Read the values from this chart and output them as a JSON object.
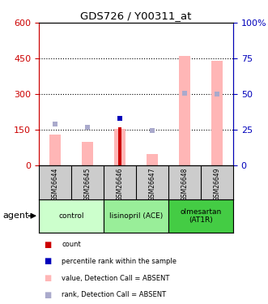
{
  "title": "GDS726 / Y00311_at",
  "samples": [
    "GSM26644",
    "GSM26645",
    "GSM26646",
    "GSM26647",
    "GSM26648",
    "GSM26649"
  ],
  "groups": [
    {
      "label": "control",
      "indices": [
        0,
        1
      ],
      "color": "#ccffcc"
    },
    {
      "label": "lisinopril (ACE)",
      "indices": [
        2,
        3
      ],
      "color": "#99ee99"
    },
    {
      "label": "olmesartan\n(AT1R)",
      "indices": [
        4,
        5
      ],
      "color": "#44cc44"
    }
  ],
  "ylim_left": [
    0,
    600
  ],
  "ylim_right": [
    0,
    100
  ],
  "yticks_left": [
    0,
    150,
    300,
    450,
    600
  ],
  "yticks_right": [
    0,
    25,
    50,
    75,
    100
  ],
  "left_axis_color": "#cc0000",
  "right_axis_color": "#0000bb",
  "bar_pink_values": [
    130,
    100,
    155,
    50,
    460,
    440
  ],
  "bar_red_values": [
    0,
    0,
    160,
    0,
    0,
    0
  ],
  "dot_lightblue_values": [
    175,
    160,
    null,
    148,
    305,
    300
  ],
  "dot_navy_values": [
    null,
    null,
    200,
    null,
    null,
    null
  ],
  "background_color": "#ffffff",
  "plot_bg": "#ffffff",
  "sample_bg": "#cccccc",
  "legend_colors": [
    "#cc0000",
    "#0000bb",
    "#ffb6b6",
    "#aaaacc"
  ],
  "legend_labels": [
    "count",
    "percentile rank within the sample",
    "value, Detection Call = ABSENT",
    "rank, Detection Call = ABSENT"
  ]
}
